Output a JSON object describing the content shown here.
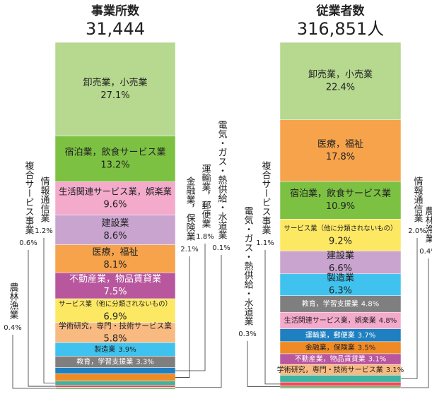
{
  "chart_data": [
    {
      "type": "stacked_column",
      "title": "事業所数",
      "subtitle": "31,444",
      "categories": [
        "卸売業，小売業",
        "宿泊業，飲食サービス業",
        "生活関連サービス業，娯楽業",
        "建設業",
        "医療，福祉",
        "不動産業，物品賃貸業",
        "サービス業（他に分類されないもの）",
        "学術研究，専門・技術サービス業",
        "製造業",
        "教育，学習支援業",
        "運輸業，郵便業",
        "金融業，保険業",
        "情報通信業",
        "複合サービス事業",
        "電気・ガス・熱供給・水道業",
        "農林漁業"
      ],
      "values": [
        27.1,
        13.2,
        9.6,
        8.6,
        8.1,
        7.5,
        6.9,
        5.8,
        3.9,
        3.3,
        1.8,
        2.1,
        1.2,
        0.6,
        0.1,
        0.4
      ],
      "value_labels": [
        "27.1%",
        "13.2%",
        "9.6%",
        "8.6%",
        "8.1%",
        "7.5%",
        "6.9%",
        "5.8%",
        "3.9%",
        "3.3%",
        "1.8%",
        "2.1%",
        "1.2%",
        "0.6%",
        "0.1%",
        "0.4%"
      ],
      "colors": [
        "#b6d88f",
        "#7dc143",
        "#f4aacb",
        "#c8a4cf",
        "#f7a34c",
        "#b8579e",
        "#fde863",
        "#f9ba82",
        "#3fc3ee",
        "#7f7f7f",
        "#1f80c1",
        "#f08a25",
        "#3db3a1",
        "#e94c5c",
        "#8b5a2b",
        "#4caf50"
      ]
    },
    {
      "type": "stacked_column",
      "title": "従業者数",
      "subtitle": "316,851人",
      "categories": [
        "卸売業，小売業",
        "医療，福祉",
        "宿泊業，飲食サービス業",
        "サービス業（他に分類されないもの）",
        "建設業",
        "製造業",
        "教育，学習支援業",
        "生活関連サービス業，娯楽業",
        "運輸業，郵便業",
        "金融業，保険業",
        "不動産業，物品賃貸業",
        "学術研究，専門・技術サービス業",
        "情報通信業",
        "複合サービス事業",
        "電気・ガス・熱供給・水道業",
        "農林漁業"
      ],
      "values": [
        22.4,
        17.8,
        10.9,
        9.2,
        6.6,
        6.3,
        4.8,
        4.8,
        3.7,
        3.5,
        3.1,
        3.1,
        2.0,
        1.1,
        0.3,
        0.4
      ],
      "value_labels": [
        "22.4%",
        "17.8%",
        "10.9%",
        "9.2%",
        "6.6%",
        "6.3%",
        "4.8%",
        "4.8%",
        "3.7%",
        "3.5%",
        "3.1%",
        "3.1%",
        "2.0%",
        "1.1%",
        "0.3%",
        "0.4%"
      ],
      "colors": [
        "#b6d88f",
        "#f7a34c",
        "#7dc143",
        "#fde863",
        "#c8a4cf",
        "#3fc3ee",
        "#7f7f7f",
        "#f4aacb",
        "#1f80c1",
        "#f08a25",
        "#b8579e",
        "#f9ba82",
        "#3db3a1",
        "#e94c5c",
        "#8b5a2b",
        "#4caf50"
      ]
    }
  ]
}
